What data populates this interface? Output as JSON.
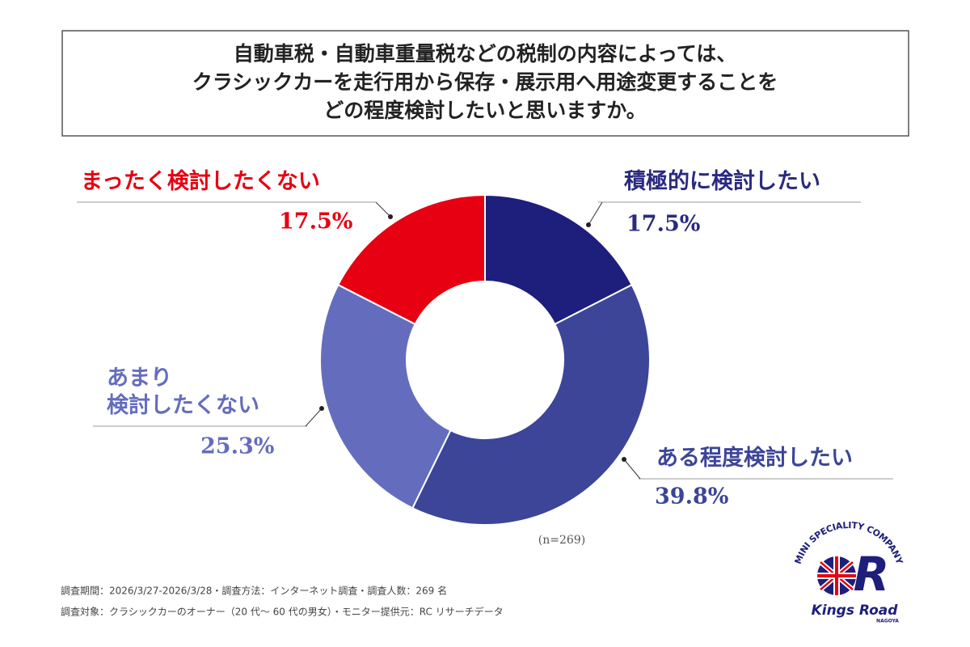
{
  "title_lines": [
    "自動車税・自動車重量税などの税制の内容によっては、",
    "クラシックカーを走行用から保存・展示用へ用途変更することを",
    "どの程度検討したいと思いますか。"
  ],
  "chart_data": {
    "type": "donut",
    "categories": [
      "積極的に検討したい",
      "ある程度検討したい",
      "あまり\n検討したくない",
      "まったく検討したくない"
    ],
    "values": [
      17.5,
      39.8,
      25.3,
      17.5
    ],
    "value_labels": [
      "17.5%",
      "39.8%",
      "25.3%",
      "17.5%"
    ],
    "colors": [
      "#1e1e7c",
      "#3c4598",
      "#646dbd",
      "#e60012"
    ],
    "label_colors": [
      "#2a2a80",
      "#3c4598",
      "#646dbd",
      "#e60012"
    ],
    "note": "(n=269)"
  },
  "footnotes": [
    "調査期間：2026/3/27-2026/3/28・調査方法：インターネット調査・調査人数：269 名",
    "調査対象：クラシックカーのオーナー（20 代～ 60 代の男女）・モニター提供元：RC リサーチデータ"
  ],
  "logo": {
    "arc_text": "MINI SPECIALITY COMPANY",
    "letter": "R",
    "name": "Kings Road",
    "city": "NAGOYA"
  }
}
